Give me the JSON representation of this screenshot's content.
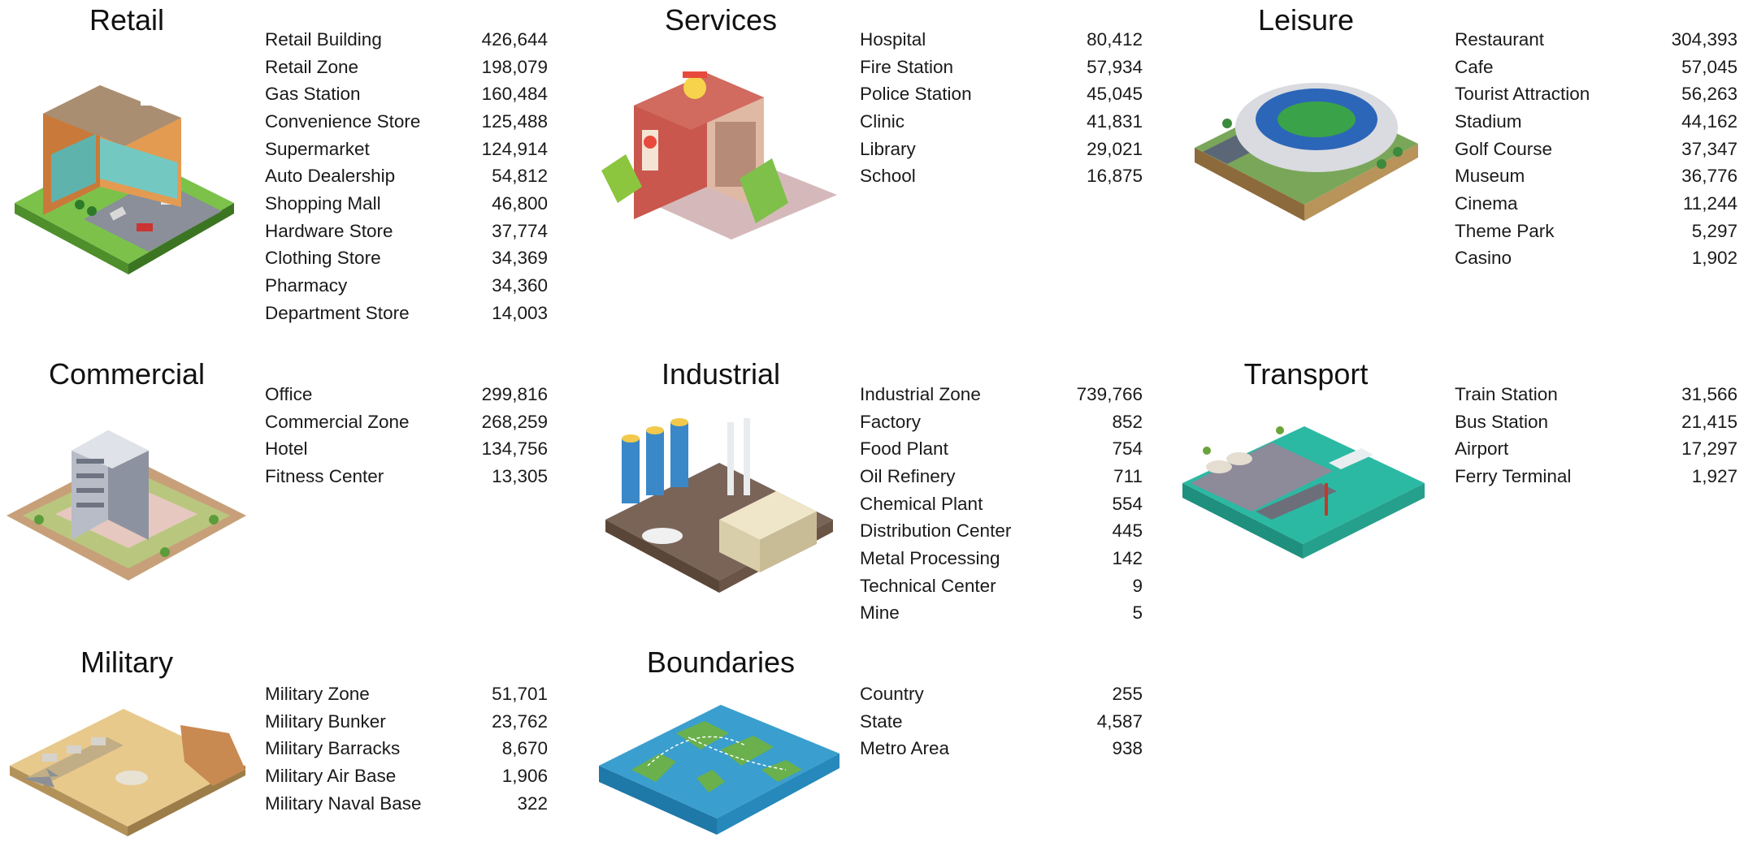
{
  "categories": [
    {
      "id": "retail",
      "title": "Retail",
      "icon": "retail-store-icon",
      "items": [
        {
          "label": "Retail Building",
          "value": "426,644"
        },
        {
          "label": "Retail Zone",
          "value": "198,079"
        },
        {
          "label": "Gas Station",
          "value": "160,484"
        },
        {
          "label": "Convenience Store",
          "value": "125,488"
        },
        {
          "label": "Supermarket",
          "value": "124,914"
        },
        {
          "label": "Auto Dealership",
          "value": "54,812"
        },
        {
          "label": "Shopping Mall",
          "value": "46,800"
        },
        {
          "label": "Hardware Store",
          "value": "37,774"
        },
        {
          "label": "Clothing Store",
          "value": "34,369"
        },
        {
          "label": "Pharmacy",
          "value": "34,360"
        },
        {
          "label": "Department Store",
          "value": "14,003"
        }
      ]
    },
    {
      "id": "services",
      "title": "Services",
      "icon": "hospital-icon",
      "items": [
        {
          "label": "Hospital",
          "value": "80,412"
        },
        {
          "label": "Fire Station",
          "value": "57,934"
        },
        {
          "label": "Police Station",
          "value": "45,045"
        },
        {
          "label": "Clinic",
          "value": "41,831"
        },
        {
          "label": "Library",
          "value": "29,021"
        },
        {
          "label": "School",
          "value": "16,875"
        }
      ]
    },
    {
      "id": "leisure",
      "title": "Leisure",
      "icon": "stadium-icon",
      "items": [
        {
          "label": "Restaurant",
          "value": "304,393"
        },
        {
          "label": "Cafe",
          "value": "57,045"
        },
        {
          "label": "Tourist Attraction",
          "value": "56,263"
        },
        {
          "label": "Stadium",
          "value": "44,162"
        },
        {
          "label": "Golf Course",
          "value": "37,347"
        },
        {
          "label": "Museum",
          "value": "36,776"
        },
        {
          "label": "Cinema",
          "value": "11,244"
        },
        {
          "label": "Theme Park",
          "value": "5,297"
        },
        {
          "label": "Casino",
          "value": "1,902"
        }
      ]
    },
    {
      "id": "commercial",
      "title": "Commercial",
      "icon": "office-tower-icon",
      "items": [
        {
          "label": "Office",
          "value": "299,816"
        },
        {
          "label": "Commercial Zone",
          "value": "268,259"
        },
        {
          "label": "Hotel",
          "value": "134,756"
        },
        {
          "label": "Fitness Center",
          "value": "13,305"
        }
      ]
    },
    {
      "id": "industrial",
      "title": "Industrial",
      "icon": "factory-icon",
      "items": [
        {
          "label": "Industrial Zone",
          "value": "739,766"
        },
        {
          "label": "Factory",
          "value": "852"
        },
        {
          "label": "Food Plant",
          "value": "754"
        },
        {
          "label": "Oil Refinery",
          "value": "711"
        },
        {
          "label": "Chemical Plant",
          "value": "554"
        },
        {
          "label": "Distribution Center",
          "value": "445"
        },
        {
          "label": "Metal Processing",
          "value": "142"
        },
        {
          "label": "Technical Center",
          "value": "9"
        },
        {
          "label": "Mine",
          "value": "5"
        }
      ]
    },
    {
      "id": "transport",
      "title": "Transport",
      "icon": "port-icon",
      "items": [
        {
          "label": "Train Station",
          "value": "31,566"
        },
        {
          "label": "Bus Station",
          "value": "21,415"
        },
        {
          "label": "Airport",
          "value": "17,297"
        },
        {
          "label": "Ferry Terminal",
          "value": "1,927"
        }
      ]
    },
    {
      "id": "military",
      "title": "Military",
      "icon": "military-base-icon",
      "items": [
        {
          "label": "Military Zone",
          "value": "51,701"
        },
        {
          "label": "Military Bunker",
          "value": "23,762"
        },
        {
          "label": "Military Barracks",
          "value": "8,670"
        },
        {
          "label": "Military Air Base",
          "value": "1,906"
        },
        {
          "label": "Military Naval Base",
          "value": "322"
        }
      ]
    },
    {
      "id": "boundaries",
      "title": "Boundaries",
      "icon": "world-map-icon",
      "items": [
        {
          "label": "Country",
          "value": "255"
        },
        {
          "label": "State",
          "value": "4,587"
        },
        {
          "label": "Metro Area",
          "value": "938"
        }
      ]
    }
  ]
}
